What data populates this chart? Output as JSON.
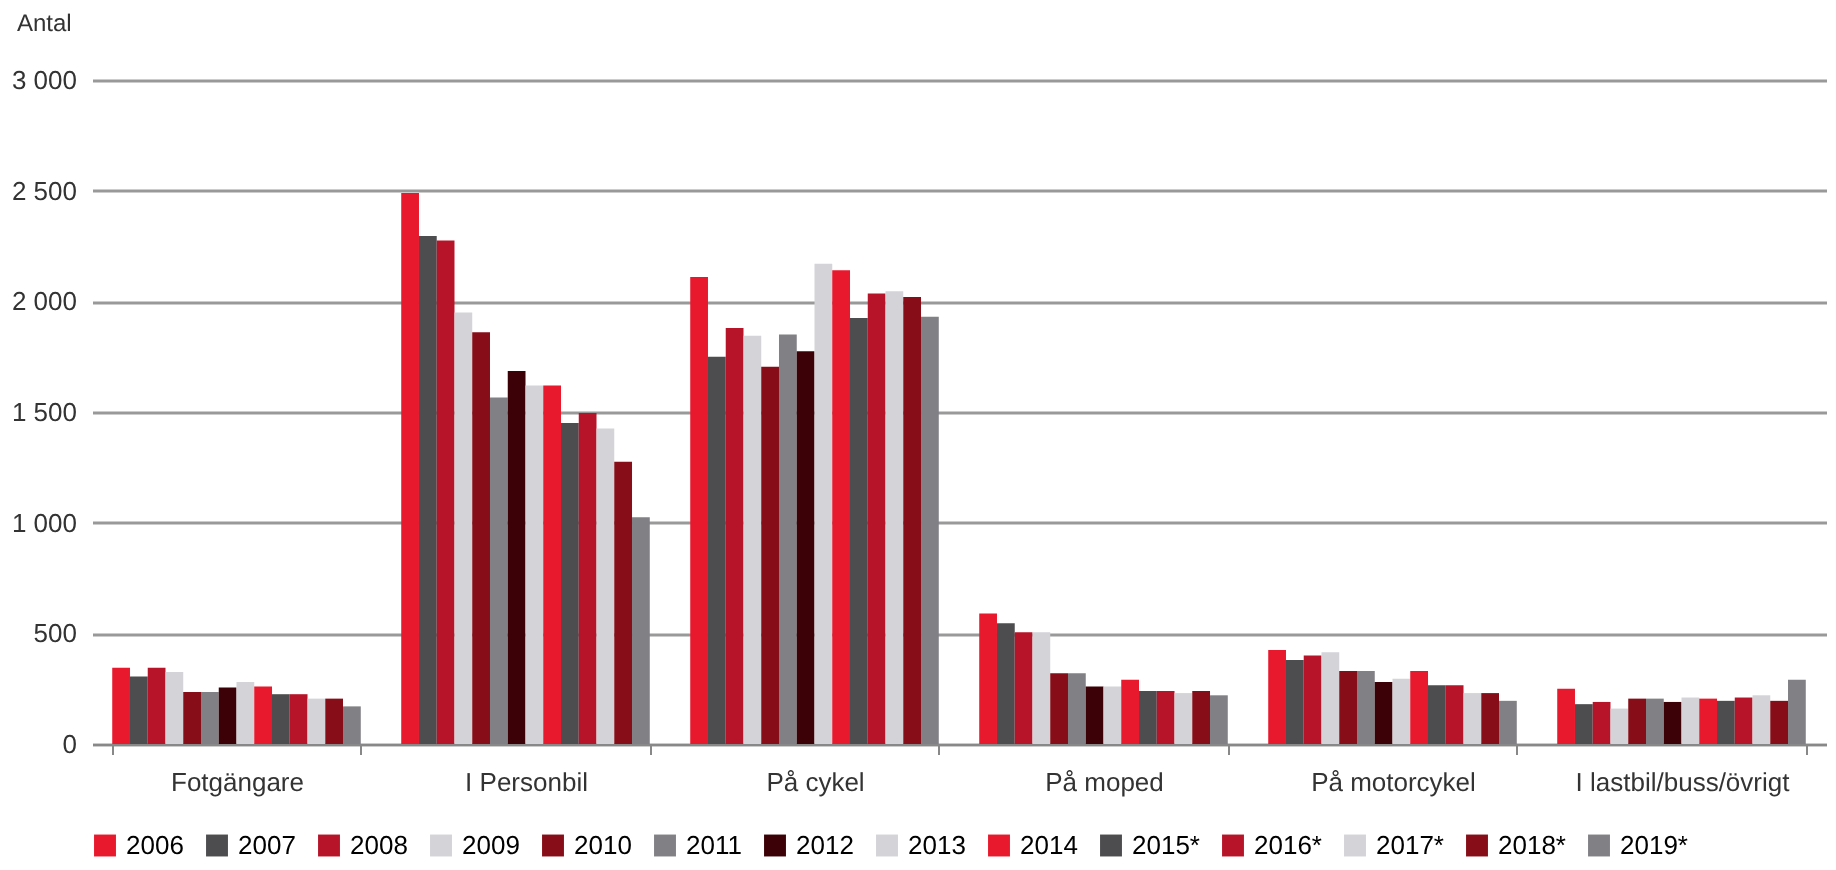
{
  "chart_data": {
    "type": "bar",
    "ylabel": "Antal",
    "categories": [
      "Fotgängare",
      "I Personbil",
      "På cykel",
      "På moped",
      "På motorcykel",
      "I lastbil/buss/övrigt"
    ],
    "series": [
      {
        "name": "2006",
        "color": "#e8192c",
        "values": [
          345,
          2490,
          2110,
          590,
          425,
          250
        ]
      },
      {
        "name": "2007",
        "color": "#4d4d4f",
        "values": [
          305,
          2295,
          1750,
          545,
          380,
          180
        ]
      },
      {
        "name": "2008",
        "color": "#b81429",
        "values": [
          345,
          2275,
          1880,
          505,
          400,
          190
        ]
      },
      {
        "name": "2009",
        "color": "#d3d3d8",
        "values": [
          325,
          1950,
          1845,
          505,
          415,
          160
        ]
      },
      {
        "name": "2010",
        "color": "#870e18",
        "values": [
          235,
          1860,
          1705,
          320,
          330,
          205
        ]
      },
      {
        "name": "2011",
        "color": "#808085",
        "values": [
          235,
          1565,
          1850,
          320,
          330,
          205
        ]
      },
      {
        "name": "2012",
        "color": "#3c0007",
        "values": [
          255,
          1685,
          1775,
          260,
          280,
          190
        ]
      },
      {
        "name": "2013",
        "color": "#d3d3d8",
        "values": [
          280,
          1620,
          2170,
          260,
          295,
          210
        ]
      },
      {
        "name": "2014",
        "color": "#e8192c",
        "values": [
          260,
          1620,
          2140,
          290,
          330,
          205
        ]
      },
      {
        "name": "2015*",
        "color": "#4d4d4f",
        "values": [
          225,
          1450,
          1925,
          240,
          265,
          195
        ]
      },
      {
        "name": "2016*",
        "color": "#b81429",
        "values": [
          225,
          1495,
          2035,
          240,
          265,
          210
        ]
      },
      {
        "name": "2017*",
        "color": "#d3d3d8",
        "values": [
          205,
          1425,
          2045,
          230,
          230,
          220
        ]
      },
      {
        "name": "2018*",
        "color": "#870e18",
        "values": [
          205,
          1275,
          2020,
          240,
          230,
          195
        ]
      },
      {
        "name": "2019*",
        "color": "#808085",
        "values": [
          170,
          1025,
          1930,
          220,
          195,
          290
        ]
      }
    ],
    "ylim": [
      0,
      3000
    ],
    "yticks": [
      0,
      500,
      {
        "value": 1000,
        "label": "1 000"
      },
      {
        "value": 1500,
        "label": "1 500"
      },
      {
        "value": 2000,
        "label": "2 000"
      },
      {
        "value": 2500,
        "label": "2 500"
      },
      {
        "value": 3000,
        "label": "3 000"
      }
    ],
    "grid": "y",
    "legend": "bottom"
  }
}
